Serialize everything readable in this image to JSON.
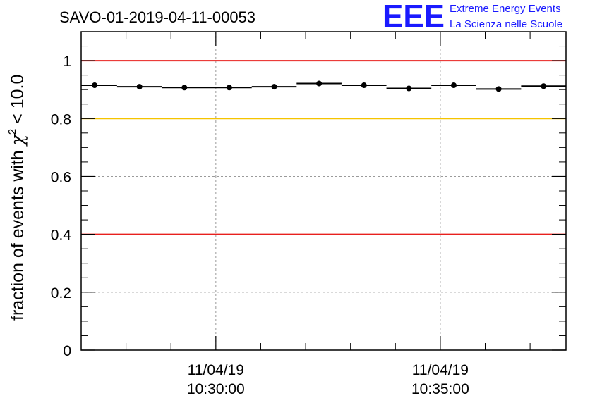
{
  "chart_data": {
    "type": "scatter",
    "title": "SAVO-01-2019-04-11-00053",
    "ylabel": {
      "prefix": "fraction of events with ",
      "symbol": "χ",
      "superscript": "2",
      "suffix": " < 10.0"
    },
    "xlabel": "",
    "ylim": [
      0,
      1.1
    ],
    "yticks": [
      0,
      0.2,
      0.4,
      0.6,
      0.8,
      1
    ],
    "ytick_labels": [
      "0",
      "0.2",
      "0.4",
      "0.6",
      "0.8",
      "1"
    ],
    "x_unit": "minutes after 10:27:00",
    "xlim": [
      0,
      10.8
    ],
    "xticks": [
      {
        "x": 3,
        "date": "11/04/19",
        "time": "10:30:00"
      },
      {
        "x": 8,
        "date": "11/04/19",
        "time": "10:35:00"
      }
    ],
    "grid": true,
    "reference_lines": [
      {
        "y": 1.0,
        "color": "#e8201e"
      },
      {
        "y": 0.8,
        "color": "#f5c400"
      },
      {
        "y": 0.4,
        "color": "#e8201e"
      }
    ],
    "series": [
      {
        "name": "fraction",
        "color": "#000000",
        "bin_width": 1.0,
        "x": [
          0.3,
          1.3,
          2.3,
          3.3,
          4.3,
          5.3,
          6.3,
          7.3,
          8.3,
          9.3,
          10.3
        ],
        "values": [
          0.915,
          0.91,
          0.907,
          0.907,
          0.91,
          0.921,
          0.915,
          0.904,
          0.915,
          0.902,
          0.912
        ]
      }
    ]
  },
  "logo": {
    "mark": "EEE",
    "line1": "Extreme Energy Events",
    "line2": "La Scienza nelle Scuole",
    "color": "#1a1aff"
  }
}
